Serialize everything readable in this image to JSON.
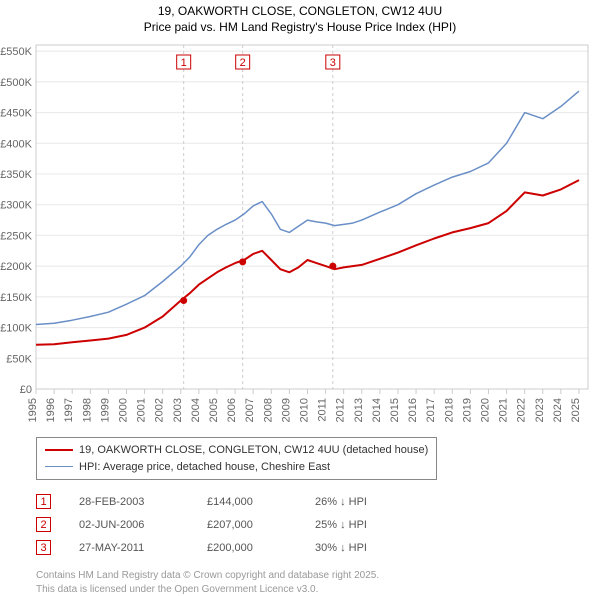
{
  "title": {
    "line1": "19, OAKWORTH CLOSE, CONGLETON, CW12 4UU",
    "line2": "Price paid vs. HM Land Registry's House Price Index (HPI)"
  },
  "chart": {
    "type": "line",
    "background_color": "#ffffff",
    "plot_border_color": "#cccccc",
    "grid_color": "#e8e8e8",
    "axis_label_color": "#666666",
    "axis_label_fontsize": 11,
    "xlim": [
      1995,
      2025.5
    ],
    "ylim": [
      0,
      560000
    ],
    "xticks": [
      1995,
      1996,
      1997,
      1998,
      1999,
      2000,
      2001,
      2002,
      2003,
      2004,
      2005,
      2006,
      2007,
      2008,
      2009,
      2010,
      2011,
      2012,
      2013,
      2014,
      2015,
      2016,
      2017,
      2018,
      2019,
      2020,
      2021,
      2022,
      2023,
      2024,
      2025
    ],
    "yticks": [
      0,
      50000,
      100000,
      150000,
      200000,
      250000,
      300000,
      350000,
      400000,
      450000,
      500000,
      550000
    ],
    "ytick_labels": [
      "£0",
      "£50K",
      "£100K",
      "£150K",
      "£200K",
      "£250K",
      "£300K",
      "£350K",
      "£400K",
      "£450K",
      "£500K",
      "£550K"
    ],
    "series": [
      {
        "id": "property",
        "label": "19, OAKWORTH CLOSE, CONGLETON, CW12 4UU (detached house)",
        "color": "#cc0000",
        "line_width": 2,
        "data": [
          [
            1995,
            72000
          ],
          [
            1996,
            73000
          ],
          [
            1997,
            76000
          ],
          [
            1998,
            79000
          ],
          [
            1999,
            82000
          ],
          [
            2000,
            88000
          ],
          [
            2001,
            100000
          ],
          [
            2002,
            118000
          ],
          [
            2003,
            144000
          ],
          [
            2003.5,
            156000
          ],
          [
            2004,
            170000
          ],
          [
            2004.5,
            180000
          ],
          [
            2005,
            190000
          ],
          [
            2005.5,
            198000
          ],
          [
            2006,
            205000
          ],
          [
            2006.5,
            210000
          ],
          [
            2007,
            220000
          ],
          [
            2007.5,
            225000
          ],
          [
            2008,
            210000
          ],
          [
            2008.5,
            195000
          ],
          [
            2009,
            190000
          ],
          [
            2009.5,
            198000
          ],
          [
            2010,
            210000
          ],
          [
            2010.5,
            205000
          ],
          [
            2011,
            200000
          ],
          [
            2011.5,
            195000
          ],
          [
            2012,
            198000
          ],
          [
            2012.5,
            200000
          ],
          [
            2013,
            202000
          ],
          [
            2014,
            212000
          ],
          [
            2015,
            222000
          ],
          [
            2016,
            234000
          ],
          [
            2017,
            245000
          ],
          [
            2018,
            255000
          ],
          [
            2019,
            262000
          ],
          [
            2020,
            270000
          ],
          [
            2021,
            290000
          ],
          [
            2022,
            320000
          ],
          [
            2023,
            315000
          ],
          [
            2024,
            325000
          ],
          [
            2025,
            340000
          ]
        ]
      },
      {
        "id": "hpi",
        "label": "HPI: Average price, detached house, Cheshire East",
        "color": "#6a8fc7",
        "line_width": 1.5,
        "data": [
          [
            1995,
            105000
          ],
          [
            1996,
            107000
          ],
          [
            1997,
            112000
          ],
          [
            1998,
            118000
          ],
          [
            1999,
            125000
          ],
          [
            2000,
            138000
          ],
          [
            2001,
            152000
          ],
          [
            2002,
            175000
          ],
          [
            2003,
            200000
          ],
          [
            2003.5,
            215000
          ],
          [
            2004,
            235000
          ],
          [
            2004.5,
            250000
          ],
          [
            2005,
            260000
          ],
          [
            2005.5,
            268000
          ],
          [
            2006,
            275000
          ],
          [
            2006.5,
            285000
          ],
          [
            2007,
            298000
          ],
          [
            2007.5,
            305000
          ],
          [
            2008,
            285000
          ],
          [
            2008.5,
            260000
          ],
          [
            2009,
            255000
          ],
          [
            2009.5,
            265000
          ],
          [
            2010,
            275000
          ],
          [
            2010.5,
            272000
          ],
          [
            2011,
            270000
          ],
          [
            2011.5,
            266000
          ],
          [
            2012,
            268000
          ],
          [
            2012.5,
            270000
          ],
          [
            2013,
            275000
          ],
          [
            2014,
            288000
          ],
          [
            2015,
            300000
          ],
          [
            2016,
            318000
          ],
          [
            2017,
            332000
          ],
          [
            2018,
            345000
          ],
          [
            2019,
            354000
          ],
          [
            2020,
            368000
          ],
          [
            2021,
            400000
          ],
          [
            2022,
            450000
          ],
          [
            2023,
            440000
          ],
          [
            2024,
            460000
          ],
          [
            2025,
            485000
          ]
        ]
      }
    ],
    "sale_markers": [
      {
        "n": "1",
        "x": 2003.16,
        "y": 144000
      },
      {
        "n": "2",
        "x": 2006.42,
        "y": 207000
      },
      {
        "n": "3",
        "x": 2011.4,
        "y": 200000
      }
    ],
    "marker_point_color": "#cc0000",
    "marker_point_radius": 3.5
  },
  "legend": {
    "border_color": "#888888",
    "text_color": "#333333",
    "fontsize": 11,
    "items": [
      {
        "color": "#cc0000",
        "width": 2,
        "label": "19, OAKWORTH CLOSE, CONGLETON, CW12 4UU (detached house)"
      },
      {
        "color": "#6a8fc7",
        "width": 1.5,
        "label": "HPI: Average price, detached house, Cheshire East"
      }
    ]
  },
  "annotations": {
    "text_color": "#555555",
    "fontsize": 11,
    "rows": [
      {
        "n": "1",
        "date": "28-FEB-2003",
        "price": "£144,000",
        "diff": "26% ↓ HPI"
      },
      {
        "n": "2",
        "date": "02-JUN-2006",
        "price": "£207,000",
        "diff": "25% ↓ HPI"
      },
      {
        "n": "3",
        "date": "27-MAY-2011",
        "price": "£200,000",
        "diff": "30% ↓ HPI"
      }
    ]
  },
  "footer": {
    "line1": "Contains HM Land Registry data © Crown copyright and database right 2025.",
    "line2": "This data is licensed under the Open Government Licence v3.0.",
    "text_color": "#999999",
    "fontsize": 10
  }
}
